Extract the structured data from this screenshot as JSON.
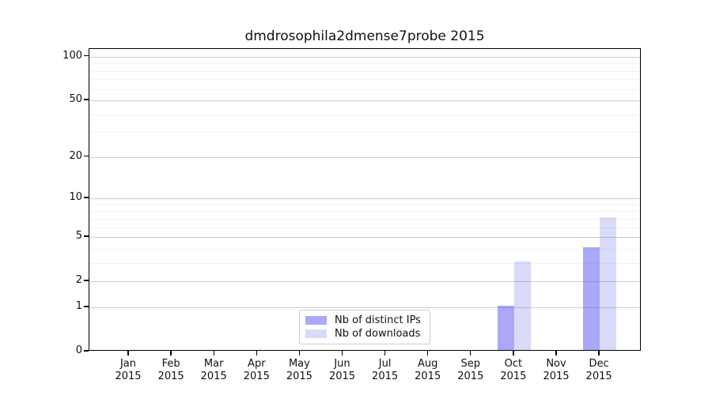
{
  "chart_data": {
    "type": "bar",
    "title": "dmdrosophila2dmense7probe 2015",
    "categories": [
      "Jan",
      "Feb",
      "Mar",
      "Apr",
      "May",
      "Jun",
      "Jul",
      "Aug",
      "Sep",
      "Oct",
      "Nov",
      "Dec"
    ],
    "category_year": "2015",
    "series": [
      {
        "name": "Nb of distinct IPs",
        "color": "#a9a9f8",
        "values": [
          0,
          0,
          0,
          0,
          0,
          0,
          0,
          0,
          0,
          1,
          0,
          4
        ]
      },
      {
        "name": "Nb of downloads",
        "color": "#dadaf9",
        "values": [
          0,
          0,
          0,
          0,
          0,
          0,
          0,
          0,
          0,
          3,
          0,
          7
        ]
      }
    ],
    "yscale": "log1p",
    "ylim": [
      0,
      113
    ],
    "ytick_labels": [
      "0",
      "1",
      "2",
      "5",
      "10",
      "20",
      "50",
      "100"
    ],
    "yticks_major": [
      0,
      1,
      2,
      5,
      10,
      20,
      50,
      100
    ],
    "yticks_minor": [
      3,
      4,
      6,
      7,
      8,
      9,
      30,
      40,
      60,
      70,
      80,
      90
    ],
    "grid": "horizontal",
    "legend_position": "inside-bottom-center",
    "xlabel": "",
    "ylabel": ""
  },
  "colors": {
    "axis": "#000000",
    "text": "#111111",
    "background": "#ffffff"
  }
}
